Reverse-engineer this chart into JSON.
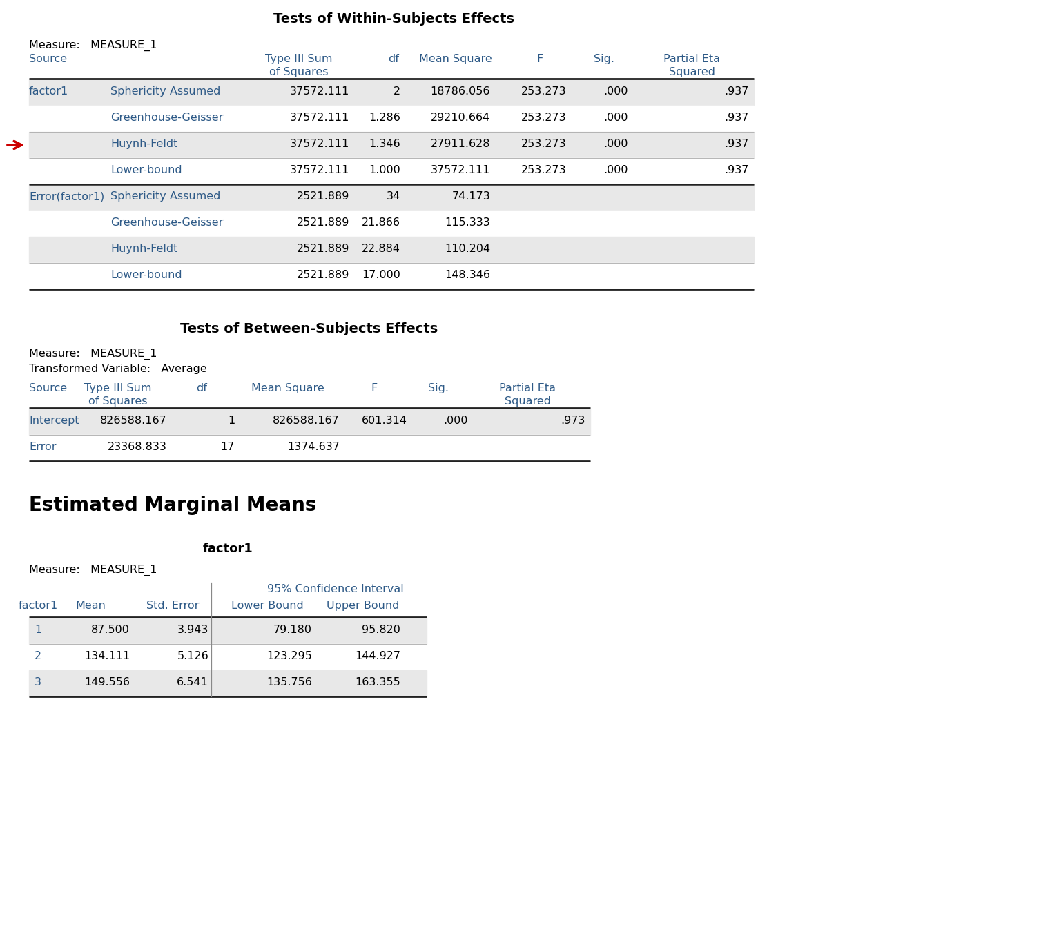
{
  "title1": "Tests of Within-Subjects Effects",
  "measure1": "Measure:   MEASURE_1",
  "table1_data": [
    [
      "factor1",
      "Sphericity Assumed",
      "37572.111",
      "2",
      "18786.056",
      "253.273",
      ".000",
      ".937"
    ],
    [
      "",
      "Greenhouse-Geisser",
      "37572.111",
      "1.286",
      "29210.664",
      "253.273",
      ".000",
      ".937"
    ],
    [
      "",
      "Huynh-Feldt",
      "37572.111",
      "1.346",
      "27911.628",
      "253.273",
      ".000",
      ".937"
    ],
    [
      "",
      "Lower-bound",
      "37572.111",
      "1.000",
      "37572.111",
      "253.273",
      ".000",
      ".937"
    ],
    [
      "Error(factor1)",
      "Sphericity Assumed",
      "2521.889",
      "34",
      "74.173",
      "",
      "",
      ""
    ],
    [
      "",
      "Greenhouse-Geisser",
      "2521.889",
      "21.866",
      "115.333",
      "",
      "",
      ""
    ],
    [
      "",
      "Huynh-Feldt",
      "2521.889",
      "22.884",
      "110.204",
      "",
      "",
      ""
    ],
    [
      "",
      "Lower-bound",
      "2521.889",
      "17.000",
      "148.346",
      "",
      "",
      ""
    ]
  ],
  "title2": "Tests of Between-Subjects Effects",
  "measure2": "Measure:   MEASURE_1",
  "transformed": "Transformed Variable:   Average",
  "table2_data": [
    [
      "Intercept",
      "826588.167",
      "1",
      "826588.167",
      "601.314",
      ".000",
      ".973"
    ],
    [
      "Error",
      "23368.833",
      "17",
      "1374.637",
      "",
      "",
      ""
    ]
  ],
  "title3": "Estimated Marginal Means",
  "title3b": "factor1",
  "measure3": "Measure:   MEASURE_1",
  "table3_ci_header": "95% Confidence Interval",
  "table3_data": [
    [
      "1",
      "87.500",
      "3.943",
      "79.180",
      "95.820"
    ],
    [
      "2",
      "134.111",
      "5.126",
      "123.295",
      "144.927"
    ],
    [
      "3",
      "149.556",
      "6.541",
      "135.756",
      "163.355"
    ]
  ],
  "header_color": "#2E5A87",
  "row_color_light": "#E8E8E8",
  "row_color_white": "#FFFFFF",
  "arrow_color": "#CC0000"
}
